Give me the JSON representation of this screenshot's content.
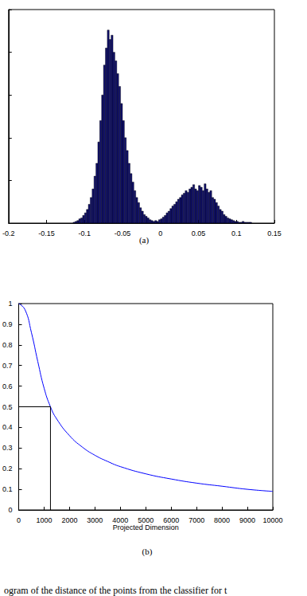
{
  "caption": "ogram of the distance of the points from the classifier for t",
  "chart_data": [
    {
      "type": "histogram",
      "title": "(a)",
      "bins": [
        -0.115,
        -0.1125,
        -0.11,
        -0.1075,
        -0.105,
        -0.1025,
        -0.1,
        -0.0975,
        -0.095,
        -0.0925,
        -0.09,
        -0.0875,
        -0.085,
        -0.0825,
        -0.08,
        -0.0775,
        -0.075,
        -0.0725,
        -0.07,
        -0.0675,
        -0.065,
        -0.0625,
        -0.06,
        -0.0575,
        -0.055,
        -0.0525,
        -0.05,
        -0.0475,
        -0.045,
        -0.0425,
        -0.04,
        -0.0375,
        -0.035,
        -0.0325,
        -0.03,
        -0.0275,
        -0.025,
        -0.0225,
        -0.02,
        -0.0175,
        -0.015,
        -0.0125,
        -0.01,
        -0.0075,
        -0.005,
        -0.0025,
        0,
        0.0025,
        0.005,
        0.0075,
        0.01,
        0.0125,
        0.015,
        0.0175,
        0.02,
        0.0225,
        0.025,
        0.0275,
        0.03,
        0.0325,
        0.035,
        0.0375,
        0.04,
        0.0425,
        0.045,
        0.0475,
        0.05,
        0.0525,
        0.055,
        0.0575,
        0.06,
        0.0625,
        0.065,
        0.0675,
        0.07,
        0.0725,
        0.075,
        0.0775,
        0.08,
        0.0825,
        0.085,
        0.0875,
        0.09,
        0.0925,
        0.095,
        0.0975,
        0.1,
        0.1025,
        0.105,
        0.1075,
        0.11,
        0.1125,
        0.115,
        0.1175,
        0.12
      ],
      "counts": [
        1,
        2,
        3,
        5,
        6,
        9,
        12,
        16,
        22,
        30,
        40,
        55,
        70,
        95,
        120,
        150,
        185,
        205,
        226,
        215,
        220,
        200,
        190,
        175,
        160,
        140,
        120,
        100,
        85,
        70,
        58,
        48,
        38,
        30,
        24,
        18,
        14,
        10,
        8,
        6,
        4,
        3,
        2,
        3,
        2,
        4,
        5,
        7,
        9,
        12,
        14,
        17,
        20,
        22,
        25,
        28,
        30,
        33,
        35,
        38,
        36,
        40,
        42,
        45,
        40,
        38,
        44,
        42,
        38,
        46,
        40,
        36,
        38,
        30,
        28,
        24,
        20,
        16,
        14,
        10,
        8,
        6,
        5,
        4,
        3,
        2,
        2,
        1,
        1,
        2,
        1,
        1,
        1,
        1
      ],
      "color": "#10106e",
      "xlim": [
        -0.2,
        0.15
      ],
      "xticks": [
        -0.2,
        -0.15,
        -0.1,
        -0.05,
        0,
        0.05,
        0.1,
        0.15
      ],
      "ylim": [
        0,
        250
      ],
      "yticks": [
        0,
        50,
        100,
        150,
        200,
        250
      ],
      "tick_labels": "x"
    },
    {
      "type": "line",
      "title": "(b)",
      "xlabel": "Projected Dimension",
      "x": [
        0,
        250,
        500,
        750,
        1000,
        1250,
        1500,
        2000,
        2500,
        3000,
        3500,
        4000,
        5000,
        6000,
        7000,
        8000,
        9000,
        10000
      ],
      "values": [
        1.0,
        0.97,
        0.86,
        0.72,
        0.59,
        0.5,
        0.44,
        0.36,
        0.305,
        0.265,
        0.235,
        0.21,
        0.175,
        0.15,
        0.13,
        0.115,
        0.1,
        0.09
      ],
      "color": "#0000ff",
      "guide": {
        "x": 1250,
        "y": 0.5,
        "color": "#000000"
      },
      "xlim": [
        0,
        10000
      ],
      "xticks": [
        0,
        1000,
        2000,
        3000,
        4000,
        5000,
        6000,
        7000,
        8000,
        9000,
        10000
      ],
      "ylim": [
        0,
        1
      ],
      "yticks": [
        0,
        0.1,
        0.2,
        0.3,
        0.4,
        0.5,
        0.6,
        0.7,
        0.8,
        0.9,
        1
      ]
    }
  ]
}
